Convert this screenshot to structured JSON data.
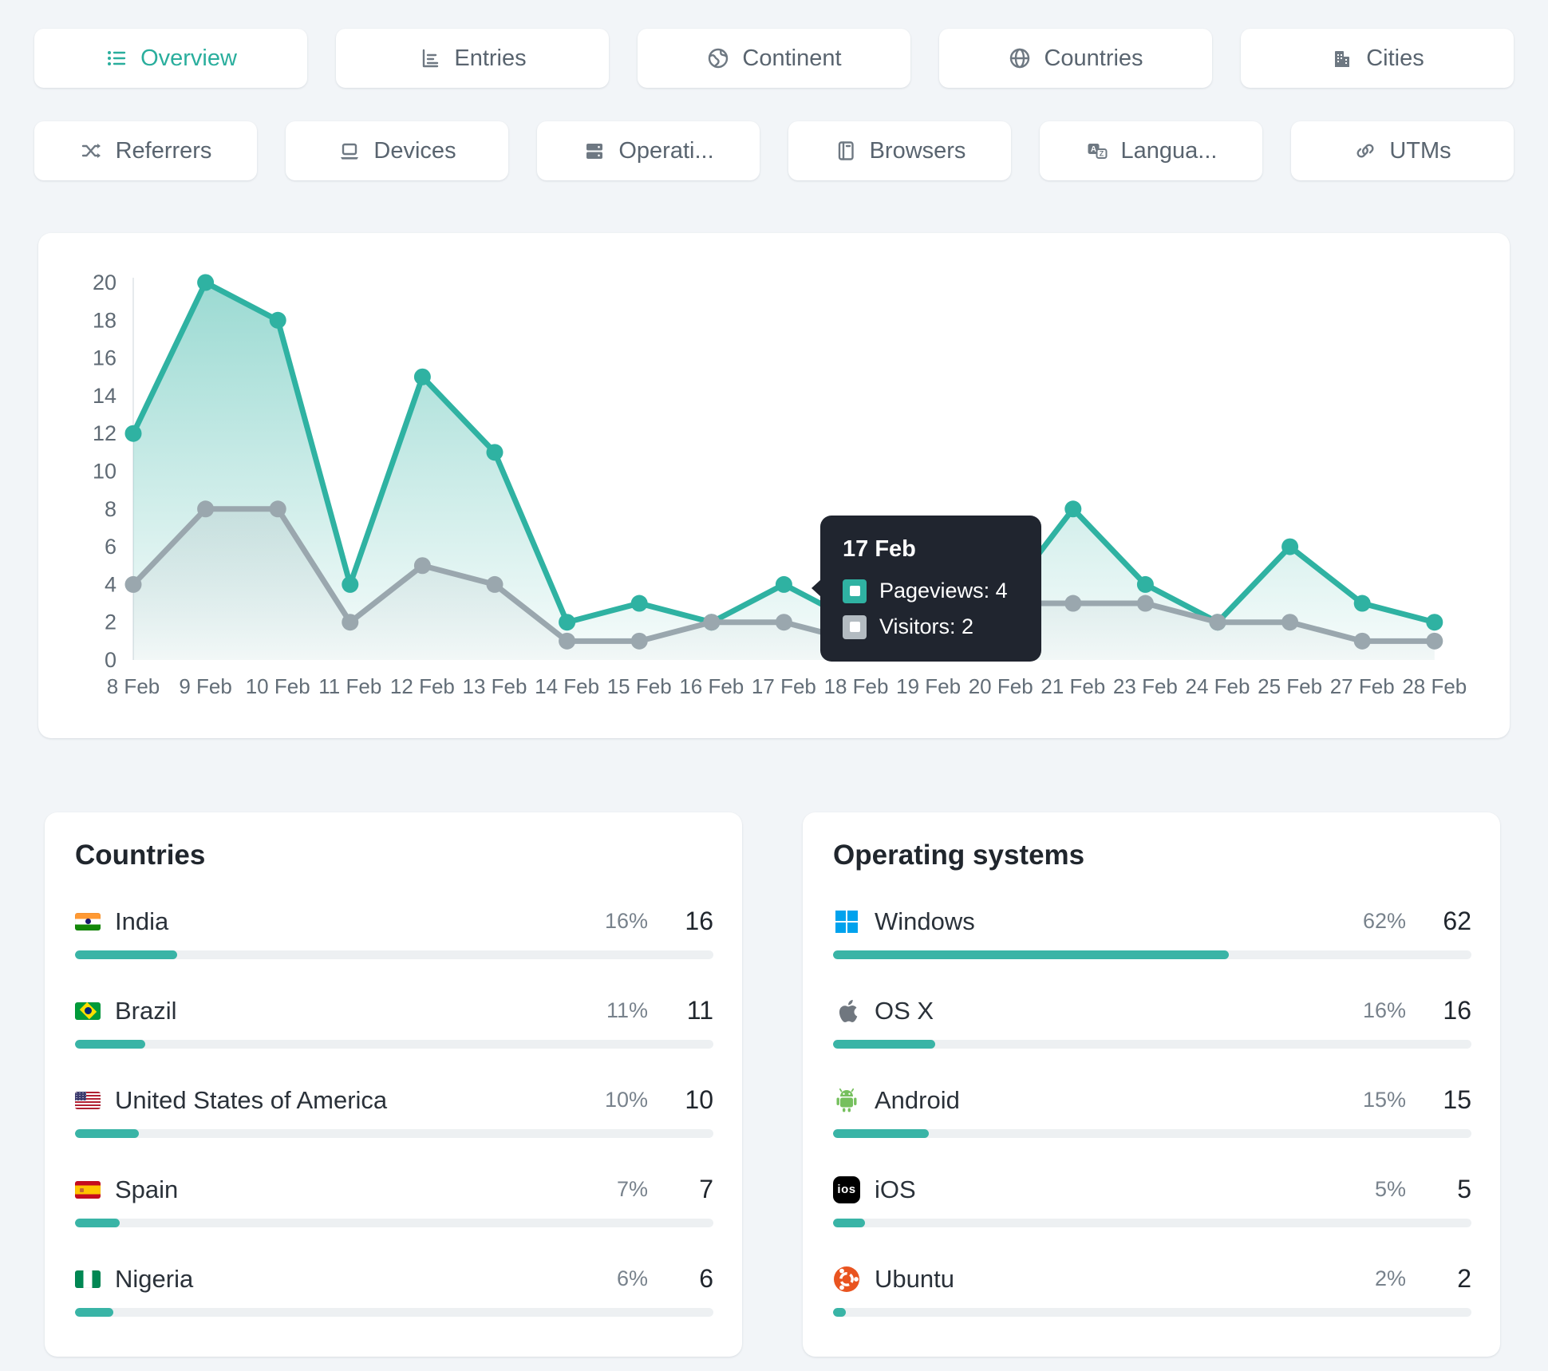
{
  "accent_color": "#2fb2a2",
  "gray_series_color": "#9aa7ae",
  "tabs": {
    "row1": [
      {
        "label": "Overview",
        "icon": "list-icon",
        "active": true
      },
      {
        "label": "Entries",
        "icon": "bar-chart-icon",
        "active": false
      },
      {
        "label": "Continent",
        "icon": "earth-icon",
        "active": false
      },
      {
        "label": "Countries",
        "icon": "globe-icon",
        "active": false
      },
      {
        "label": "Cities",
        "icon": "buildings-icon",
        "active": false
      }
    ],
    "row2": [
      {
        "label": "Referrers",
        "icon": "shuffle-icon",
        "active": false
      },
      {
        "label": "Devices",
        "icon": "laptop-icon",
        "active": false
      },
      {
        "label": "Operati...",
        "icon": "server-icon",
        "active": false
      },
      {
        "label": "Browsers",
        "icon": "browser-icon",
        "active": false
      },
      {
        "label": "Langua...",
        "icon": "translate-icon",
        "active": false
      },
      {
        "label": "UTMs",
        "icon": "link-icon",
        "active": false
      }
    ]
  },
  "chart_data": {
    "type": "line",
    "x": [
      "8 Feb",
      "9 Feb",
      "10 Feb",
      "11 Feb",
      "12 Feb",
      "13 Feb",
      "14 Feb",
      "15 Feb",
      "16 Feb",
      "17 Feb",
      "18 Feb",
      "19 Feb",
      "20 Feb",
      "21 Feb",
      "23 Feb",
      "24 Feb",
      "25 Feb",
      "27 Feb",
      "28 Feb"
    ],
    "series": [
      {
        "name": "Pageviews",
        "color": "#2fb2a2",
        "values": [
          12,
          20,
          18,
          4,
          15,
          11,
          2,
          3,
          2,
          4,
          2,
          3,
          3,
          8,
          4,
          2,
          6,
          3,
          2
        ]
      },
      {
        "name": "Visitors",
        "color": "#9aa7ae",
        "values": [
          4,
          8,
          8,
          2,
          5,
          4,
          1,
          1,
          2,
          2,
          1,
          1,
          3,
          3,
          3,
          2,
          2,
          1,
          1
        ]
      }
    ],
    "ylim": [
      0,
      20
    ],
    "yticks": [
      0,
      2,
      4,
      6,
      8,
      10,
      12,
      14,
      16,
      18,
      20
    ],
    "grid": false,
    "legend_position": "none",
    "title": "",
    "xlabel": "",
    "ylabel": ""
  },
  "tooltip": {
    "date": "17 Feb",
    "rows": [
      {
        "label": "Pageviews: 4",
        "color": "#2fb2a2"
      },
      {
        "label": "Visitors: 2",
        "color": "#b3bbc1"
      }
    ]
  },
  "panels": [
    {
      "title": "Countries",
      "rows": [
        {
          "icon": "india-flag-icon",
          "name": "India",
          "percent": "16%",
          "value": "16",
          "pct": 16
        },
        {
          "icon": "brazil-flag-icon",
          "name": "Brazil",
          "percent": "11%",
          "value": "11",
          "pct": 11
        },
        {
          "icon": "usa-flag-icon",
          "name": "United States of America",
          "percent": "10%",
          "value": "10",
          "pct": 10
        },
        {
          "icon": "spain-flag-icon",
          "name": "Spain",
          "percent": "7%",
          "value": "7",
          "pct": 7
        },
        {
          "icon": "nigeria-flag-icon",
          "name": "Nigeria",
          "percent": "6%",
          "value": "6",
          "pct": 6
        }
      ]
    },
    {
      "title": "Operating systems",
      "rows": [
        {
          "icon": "windows-icon",
          "name": "Windows",
          "percent": "62%",
          "value": "62",
          "pct": 62
        },
        {
          "icon": "apple-icon",
          "name": "OS X",
          "percent": "16%",
          "value": "16",
          "pct": 16
        },
        {
          "icon": "android-icon",
          "name": "Android",
          "percent": "15%",
          "value": "15",
          "pct": 15
        },
        {
          "icon": "ios-icon",
          "name": "iOS",
          "percent": "5%",
          "value": "5",
          "pct": 5
        },
        {
          "icon": "ubuntu-icon",
          "name": "Ubuntu",
          "percent": "2%",
          "value": "2",
          "pct": 2
        }
      ]
    }
  ]
}
